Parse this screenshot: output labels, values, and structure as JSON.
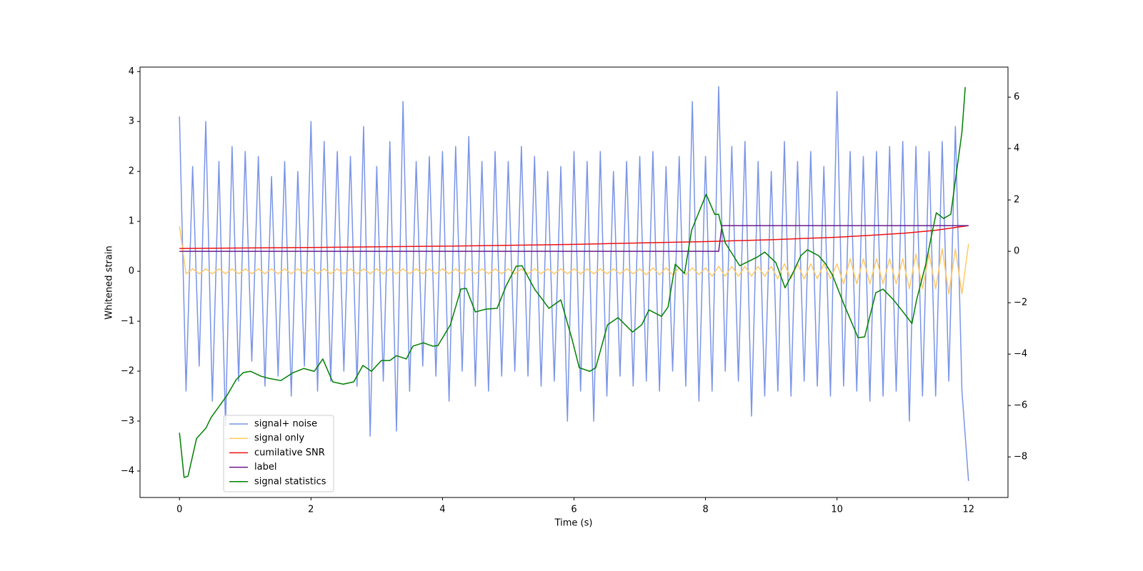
{
  "chart_data": {
    "type": "line",
    "xlabel": "Time (s)",
    "ylabel": "Whitened strain",
    "xlim": [
      -0.6,
      12.6
    ],
    "ylim": [
      -4.53,
      4.09
    ],
    "y2lim": [
      -9.58,
      7.17
    ],
    "xticks": [
      0,
      2,
      4,
      6,
      8,
      10,
      12
    ],
    "yticks": [
      {
        "value": -4,
        "label": "−4"
      },
      {
        "value": -3,
        "label": "−3"
      },
      {
        "value": -2,
        "label": "−2"
      },
      {
        "value": -1,
        "label": "−1"
      },
      0,
      1,
      2,
      3,
      4
    ],
    "y2ticks": [
      {
        "value": -8,
        "label": "−8"
      },
      {
        "value": -6,
        "label": "−6"
      },
      {
        "value": -4,
        "label": "−4"
      },
      {
        "value": -2,
        "label": "−2"
      },
      0,
      2,
      4,
      6
    ],
    "legend": "lower left",
    "x": [
      0,
      0.1,
      0.2,
      0.3,
      0.4,
      0.5,
      0.6,
      0.7,
      0.8,
      0.9,
      1,
      1.1,
      1.2,
      1.3,
      1.4,
      1.5,
      1.6,
      1.7,
      1.8,
      1.9,
      2,
      2.1,
      2.2,
      2.3,
      2.4,
      2.5,
      2.6,
      2.7,
      2.8,
      2.9,
      3,
      3.1,
      3.2,
      3.3,
      3.4,
      3.5,
      3.6,
      3.7,
      3.8,
      3.9,
      4,
      4.1,
      4.2,
      4.3,
      4.4,
      4.5,
      4.6,
      4.7,
      4.8,
      4.9,
      5,
      5.1,
      5.2,
      5.3,
      5.4,
      5.5,
      5.6,
      5.7,
      5.8,
      5.9,
      6,
      6.1,
      6.2,
      6.3,
      6.4,
      6.5,
      6.6,
      6.7,
      6.8,
      6.9,
      7,
      7.1,
      7.2,
      7.3,
      7.4,
      7.5,
      7.6,
      7.7,
      7.8,
      7.9,
      8,
      8.1,
      8.2,
      8.3,
      8.4,
      8.5,
      8.6,
      8.7,
      8.8,
      8.9,
      9,
      9.1,
      9.2,
      9.3,
      9.4,
      9.5,
      9.6,
      9.7,
      9.8,
      9.9,
      10,
      10.1,
      10.2,
      10.3,
      10.4,
      10.5,
      10.6,
      10.7,
      10.8,
      10.9,
      11,
      11.1,
      11.2,
      11.3,
      11.4,
      11.5,
      11.6,
      11.7,
      11.8,
      11.9,
      12
    ],
    "series": [
      {
        "name": "signal+ noise",
        "color": "#7a94e8",
        "axis": "y",
        "values": [
          3.1,
          -2.4,
          2.1,
          -1.9,
          3.0,
          -2.6,
          2.2,
          -3.1,
          2.5,
          -2.2,
          2.4,
          -1.8,
          2.3,
          -2.3,
          1.9,
          -2.1,
          2.2,
          -2.5,
          2.0,
          -1.9,
          3.0,
          -2.4,
          2.6,
          -2.2,
          2.4,
          -2.0,
          2.3,
          -2.3,
          2.9,
          -3.3,
          2.1,
          -2.2,
          2.6,
          -3.2,
          3.4,
          -2.4,
          2.2,
          -1.9,
          2.3,
          -2.1,
          2.4,
          -2.6,
          2.5,
          -2.0,
          2.7,
          -2.3,
          2.2,
          -2.4,
          2.4,
          -2.1,
          2.2,
          -2.0,
          2.5,
          -2.1,
          2.3,
          -2.3,
          2.0,
          -2.2,
          2.1,
          -3.0,
          2.4,
          -2.4,
          2.2,
          -3.0,
          2.4,
          -2.5,
          2.0,
          -2.1,
          2.2,
          -2.3,
          2.3,
          -2.2,
          2.4,
          -2.4,
          2.1,
          -2.0,
          2.3,
          -2.3,
          3.4,
          -2.6,
          2.3,
          -2.4,
          3.7,
          -2.0,
          2.5,
          -2.2,
          2.6,
          -2.9,
          2.2,
          -2.5,
          2.0,
          -2.4,
          2.6,
          -2.5,
          2.2,
          -2.2,
          2.4,
          -2.3,
          2.1,
          -2.5,
          3.6,
          -2.3,
          2.4,
          -2.4,
          2.3,
          -2.6,
          2.4,
          -2.5,
          2.5,
          -2.4,
          2.6,
          -3.0,
          2.5,
          -2.5,
          2.4,
          -2.5,
          2.6,
          -2.2,
          2.9,
          -2.4,
          -4.2
        ]
      },
      {
        "name": "signal only",
        "color": "#ffc966",
        "axis": "y",
        "values": [
          0.9,
          -0.05,
          0.05,
          -0.05,
          0.05,
          -0.05,
          0.05,
          -0.05,
          0.05,
          -0.05,
          0.05,
          -0.05,
          0.05,
          -0.05,
          0.05,
          -0.05,
          0.05,
          -0.05,
          0.05,
          -0.05,
          0.05,
          -0.05,
          0.05,
          -0.05,
          0.05,
          -0.05,
          0.05,
          -0.05,
          0.05,
          -0.05,
          0.05,
          -0.05,
          0.05,
          -0.05,
          0.05,
          -0.05,
          0.05,
          -0.05,
          0.05,
          -0.05,
          0.05,
          -0.05,
          0.05,
          -0.05,
          0.05,
          -0.05,
          0.05,
          -0.05,
          0.05,
          -0.05,
          0.05,
          -0.05,
          0.05,
          -0.05,
          0.05,
          -0.05,
          0.05,
          -0.05,
          0.05,
          -0.05,
          0.05,
          -0.05,
          0.05,
          -0.05,
          0.05,
          -0.05,
          0.05,
          -0.05,
          0.05,
          -0.05,
          0.05,
          -0.07,
          0.07,
          -0.07,
          0.07,
          -0.07,
          0.07,
          -0.07,
          0.07,
          -0.07,
          0.07,
          -0.1,
          0.1,
          -0.1,
          0.1,
          -0.1,
          0.1,
          -0.1,
          0.1,
          -0.1,
          0.1,
          -0.15,
          0.15,
          -0.15,
          0.15,
          -0.15,
          0.15,
          -0.15,
          0.15,
          -0.15,
          0.15,
          -0.25,
          0.25,
          -0.25,
          0.25,
          -0.25,
          0.25,
          -0.25,
          0.25,
          -0.25,
          0.25,
          -0.35,
          0.35,
          -0.35,
          0.35,
          -0.35,
          0.45,
          -0.45,
          0.45,
          -0.45,
          0.55
        ]
      },
      {
        "name": "cumilative SNR",
        "color": "#ee1111",
        "axis": "y2",
        "x": [
          0,
          2,
          4,
          6,
          8,
          9,
          10,
          10.5,
          11,
          11.5,
          12
        ],
        "values": [
          0.11,
          0.15,
          0.2,
          0.27,
          0.38,
          0.45,
          0.55,
          0.62,
          0.7,
          0.82,
          1.0
        ]
      },
      {
        "name": "label",
        "color": "#6a1a8a",
        "axis": "y2",
        "x": [
          0,
          8.2,
          8.25,
          12
        ],
        "values": [
          0,
          0,
          1,
          1
        ]
      },
      {
        "name": "signal statistics",
        "color": "#008000",
        "axis": "y2",
        "x": [
          0,
          0.07,
          0.13,
          0.26,
          0.4,
          0.48,
          0.73,
          0.86,
          0.97,
          1.08,
          1.24,
          1.35,
          1.54,
          1.73,
          1.89,
          2.05,
          2.18,
          2.33,
          2.49,
          2.65,
          2.79,
          2.92,
          3.07,
          3.2,
          3.3,
          3.45,
          3.55,
          3.71,
          3.85,
          3.93,
          4.12,
          4.28,
          4.36,
          4.5,
          4.66,
          4.83,
          4.97,
          5.12,
          5.21,
          5.4,
          5.62,
          5.8,
          5.97,
          6.08,
          6.24,
          6.33,
          6.51,
          6.67,
          6.89,
          7.03,
          7.14,
          7.33,
          7.43,
          7.54,
          7.68,
          7.79,
          8.01,
          8.14,
          8.2,
          8.3,
          8.52,
          8.79,
          8.9,
          9.07,
          9.21,
          9.34,
          9.45,
          9.55,
          9.72,
          9.83,
          9.93,
          10.1,
          10.32,
          10.42,
          10.59,
          10.7,
          10.86,
          10.99,
          11.14,
          11.21,
          11.35,
          11.43,
          11.51,
          11.62,
          11.73,
          11.9,
          11.95
        ],
        "values": [
          -7.06,
          -8.8,
          -8.75,
          -7.28,
          -6.89,
          -6.47,
          -5.58,
          -5,
          -4.72,
          -4.67,
          -4.86,
          -4.94,
          -5.03,
          -4.72,
          -4.56,
          -4.67,
          -4.19,
          -5.08,
          -5.17,
          -5.08,
          -4.44,
          -4.67,
          -4.25,
          -4.25,
          -4.06,
          -4.19,
          -3.69,
          -3.56,
          -3.69,
          -3.67,
          -2.86,
          -1.47,
          -1.44,
          -2.36,
          -2.25,
          -2.22,
          -1.33,
          -0.58,
          -0.56,
          -1.47,
          -2.22,
          -1.89,
          -3.42,
          -4.53,
          -4.67,
          -4.53,
          -2.86,
          -2.58,
          -3.14,
          -2.86,
          -2.28,
          -2.53,
          -2.17,
          -0.5,
          -0.86,
          0.83,
          2.22,
          1.44,
          1.44,
          0.33,
          -0.56,
          -0.22,
          -0.03,
          -0.44,
          -1.42,
          -0.78,
          -0.17,
          0.06,
          -0.17,
          -0.5,
          -0.92,
          -2.03,
          -3.36,
          -3.33,
          -1.61,
          -1.47,
          -1.89,
          -2.31,
          -2.81,
          -1.89,
          -0.5,
          0.53,
          1.5,
          1.28,
          1.44,
          4.64,
          6.39
        ]
      }
    ]
  }
}
